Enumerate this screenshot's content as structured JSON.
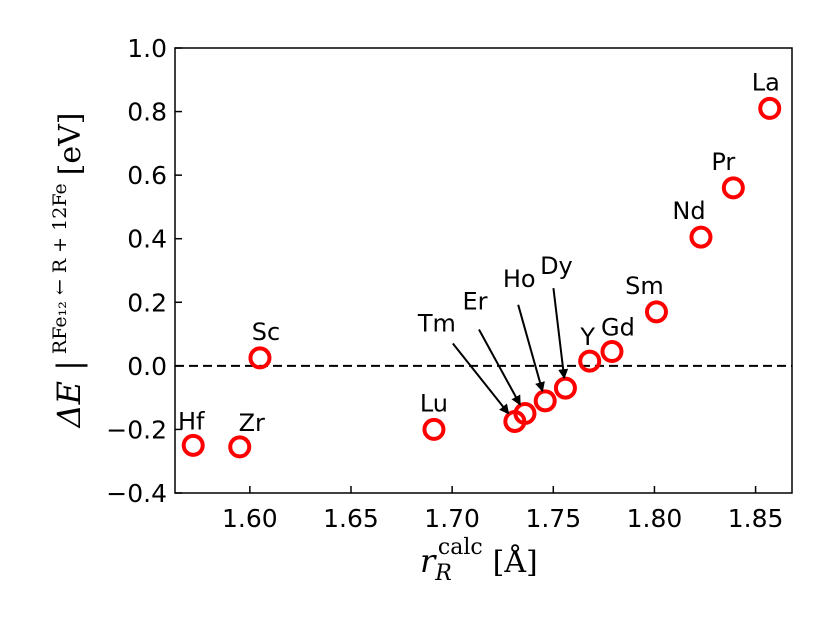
{
  "chart_data": {
    "type": "scatter",
    "xlim": [
      1.563,
      1.868
    ],
    "ylim": [
      -0.4,
      1.0
    ],
    "xticks": [
      1.6,
      1.65,
      1.7,
      1.75,
      1.8,
      1.85
    ],
    "xtick_labels": [
      "1.60",
      "1.65",
      "1.70",
      "1.75",
      "1.80",
      "1.85"
    ],
    "yticks": [
      -0.4,
      -0.2,
      0.0,
      0.2,
      0.4,
      0.6,
      0.8,
      1.0
    ],
    "ytick_labels": [
      "−0.4",
      "−0.2",
      "0.0",
      "0.2",
      "0.4",
      "0.6",
      "0.8",
      "1.0"
    ],
    "xlabel": {
      "main": "r",
      "sup": "calc",
      "sub": "R",
      "unit": "[Å]"
    },
    "ylabel": {
      "prefix": "ΔE |",
      "sup": "RFe₁₂ ← R + 12Fe",
      "unit": "[eV]"
    },
    "reference_line": {
      "y": 0.0,
      "style": "dashed"
    },
    "marker": {
      "shape": "open-circle",
      "color": "#ff0000"
    },
    "grid": false,
    "points": [
      {
        "label": "Hf",
        "x": 1.572,
        "y": -0.25
      },
      {
        "label": "Zr",
        "x": 1.595,
        "y": -0.255
      },
      {
        "label": "Sc",
        "x": 1.605,
        "y": 0.025
      },
      {
        "label": "Lu",
        "x": 1.691,
        "y": -0.2
      },
      {
        "label": "Tm",
        "x": 1.731,
        "y": -0.175,
        "arrow": true
      },
      {
        "label": "Er",
        "x": 1.736,
        "y": -0.15,
        "arrow": true
      },
      {
        "label": "Ho",
        "x": 1.746,
        "y": -0.11,
        "arrow": true
      },
      {
        "label": "Dy",
        "x": 1.756,
        "y": -0.07,
        "arrow": true
      },
      {
        "label": "Y",
        "x": 1.768,
        "y": 0.015
      },
      {
        "label": "Gd",
        "x": 1.779,
        "y": 0.045
      },
      {
        "label": "Sm",
        "x": 1.801,
        "y": 0.17
      },
      {
        "label": "Nd",
        "x": 1.823,
        "y": 0.405
      },
      {
        "label": "Pr",
        "x": 1.839,
        "y": 0.56
      },
      {
        "label": "La",
        "x": 1.857,
        "y": 0.81
      }
    ]
  }
}
